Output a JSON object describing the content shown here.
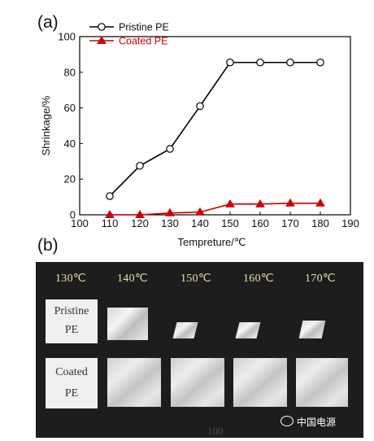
{
  "panels": {
    "a": "(a)",
    "b": "(b)"
  },
  "chart_data": {
    "type": "line",
    "xlabel": "Tempreture/℃",
    "ylabel": "Shrinkage/%",
    "xlim": [
      100,
      190
    ],
    "ylim": [
      0,
      100
    ],
    "xticks": [
      100,
      110,
      120,
      130,
      140,
      150,
      160,
      170,
      180,
      190
    ],
    "yticks": [
      0,
      20,
      40,
      60,
      80,
      100
    ],
    "legend_position": "top-left",
    "series": [
      {
        "name": "Pristine PE",
        "color": "#000000",
        "marker": "open-circle",
        "x": [
          110,
          120,
          130,
          140,
          150,
          160,
          170,
          180
        ],
        "y": [
          10.5,
          27.5,
          37,
          61,
          85.5,
          85.5,
          85.5,
          85.5
        ]
      },
      {
        "name": "Coated PE",
        "color": "#cc0000",
        "marker": "triangle",
        "x": [
          110,
          120,
          130,
          140,
          150,
          160,
          170,
          180
        ],
        "y": [
          0,
          0,
          1,
          1.5,
          6,
          6,
          6.5,
          6.5
        ]
      }
    ]
  },
  "photo": {
    "temperatures": [
      "130℃",
      "140℃",
      "150℃",
      "160℃",
      "170℃"
    ],
    "row_labels": {
      "pristine": [
        "Pristine",
        "PE"
      ],
      "coated": [
        "Coated",
        "PE"
      ]
    },
    "bottom_text": "100"
  },
  "watermark": "中国电源"
}
